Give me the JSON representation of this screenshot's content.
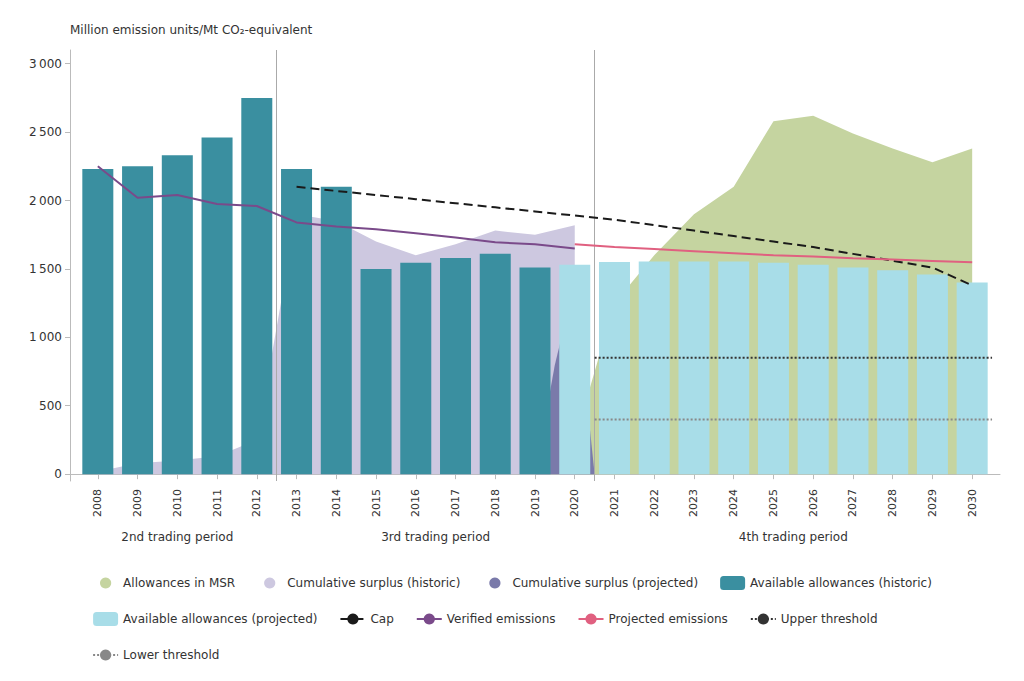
{
  "chart_data": {
    "type": "bar",
    "ylabel": "Million emission units/Mt CO₂-equivalent",
    "xlim": [
      2007.3,
      2030.7
    ],
    "xticks": [
      2008,
      2009,
      2010,
      2011,
      2012,
      2013,
      2014,
      2015,
      2016,
      2017,
      2018,
      2019,
      2020,
      2021,
      2022,
      2023,
      2024,
      2025,
      2026,
      2027,
      2028,
      2029,
      2030
    ],
    "ylim": [
      -50,
      3100
    ],
    "yticks": [
      0,
      500,
      {
        "value": 1000,
        "label": "1 000"
      },
      {
        "value": 1500,
        "label": "1 500"
      },
      {
        "value": 2000,
        "label": "2 000"
      },
      {
        "value": 2500,
        "label": "2 500"
      },
      {
        "value": 3000,
        "label": "3 000"
      }
    ],
    "grid": false,
    "legend": "bottom",
    "series": [
      {
        "name": "Allowances in MSR",
        "type": "area",
        "color": "#c5d4a0",
        "x": [
          2019,
          2020,
          2021,
          2022,
          2023,
          2024,
          2025,
          2026,
          2027,
          2028,
          2029,
          2030
        ],
        "values": [
          0,
          250,
          1250,
          1600,
          1900,
          2100,
          2580,
          2620,
          2490,
          2380,
          2280,
          2380
        ]
      },
      {
        "name": "Cumulative surplus (historic)",
        "type": "area",
        "color": "#cdc8e0",
        "x": [
          2008,
          2009,
          2010,
          2011,
          2012,
          2013,
          2014,
          2015,
          2016,
          2017,
          2018,
          2019,
          2020
        ],
        "values": [
          20,
          80,
          100,
          130,
          250,
          1900,
          1850,
          1700,
          1600,
          1680,
          1780,
          1750,
          1820
        ]
      },
      {
        "name": "Cumulative surplus (projected)",
        "type": "area",
        "color": "#7a7aaa",
        "x": [
          2019,
          2019.5,
          2020,
          2020.5
        ],
        "values": [
          0,
          800,
          1400,
          0
        ]
      },
      {
        "name": "Available allowances (historic)",
        "type": "bar",
        "color": "#3a8fa0",
        "x": [
          2008,
          2009,
          2010,
          2011,
          2012,
          2013,
          2014,
          2015,
          2016,
          2017,
          2018,
          2019
        ],
        "values": [
          2230,
          2250,
          2330,
          2460,
          2750,
          2230,
          2100,
          1500,
          1545,
          1580,
          1610,
          1510
        ]
      },
      {
        "name": "Available allowances (projected)",
        "type": "bar",
        "color": "#a8dde8",
        "x": [
          2020,
          2021,
          2022,
          2023,
          2024,
          2025,
          2026,
          2027,
          2028,
          2029,
          2030
        ],
        "values": [
          1530,
          1550,
          1555,
          1555,
          1555,
          1545,
          1530,
          1510,
          1490,
          1460,
          1400
        ]
      },
      {
        "name": "Cap",
        "type": "line",
        "color": "#1a1a1a",
        "line_style": "dashed",
        "x": [
          2013,
          2014,
          2015,
          2016,
          2017,
          2018,
          2019,
          2020,
          2021,
          2022,
          2023,
          2024,
          2025,
          2026,
          2027,
          2028,
          2029,
          2030
        ],
        "values": [
          2100,
          2070,
          2040,
          2010,
          1980,
          1950,
          1920,
          1890,
          1860,
          1820,
          1780,
          1740,
          1700,
          1660,
          1610,
          1560,
          1510,
          1380
        ]
      },
      {
        "name": "Verified emissions",
        "type": "line",
        "color": "#7a4a8a",
        "line_style": "solid",
        "x": [
          2008,
          2009,
          2010,
          2011,
          2012,
          2013,
          2014,
          2015,
          2016,
          2017,
          2018,
          2019,
          2020
        ],
        "values": [
          2250,
          2020,
          2040,
          1975,
          1960,
          1840,
          1810,
          1790,
          1760,
          1730,
          1695,
          1680,
          1650
        ]
      },
      {
        "name": "Projected emissions",
        "type": "line",
        "color": "#e06080",
        "line_style": "solid",
        "x": [
          2020,
          2021,
          2022,
          2023,
          2024,
          2025,
          2026,
          2027,
          2028,
          2029,
          2030
        ],
        "values": [
          1680,
          1660,
          1645,
          1630,
          1615,
          1600,
          1590,
          1578,
          1568,
          1558,
          1548
        ]
      },
      {
        "name": "Upper threshold",
        "type": "line",
        "color": "#333333",
        "line_style": "dotted",
        "x": [
          2020.5,
          2030.5
        ],
        "values": [
          850,
          850
        ]
      },
      {
        "name": "Lower threshold",
        "type": "line",
        "color": "#888888",
        "line_style": "dotted",
        "x": [
          2020.5,
          2030.5
        ],
        "values": [
          400,
          400
        ]
      }
    ],
    "vlines": [
      2012.5,
      2020.5
    ],
    "annotations": [
      {
        "text": "2nd trading period",
        "x": 2010.0
      },
      {
        "text": "3rd trading period",
        "x": 2016.5
      },
      {
        "text": "4th trading period",
        "x": 2025.5
      }
    ]
  }
}
